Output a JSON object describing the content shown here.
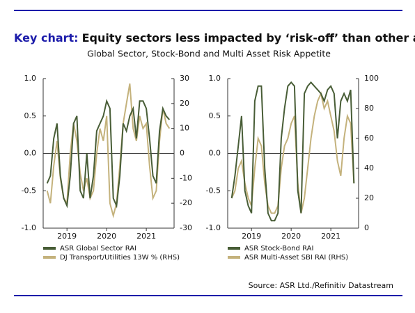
{
  "title_prefix": "Key chart:",
  "title": "Equity sectors less impacted by ‘risk-off’ than other assets",
  "subtitle": "Global Sector, Stock-Bond and Multi Asset Risk Appetite",
  "source": "Source: ASR Ltd./Refinitiv Datastream",
  "chart_data": [
    {
      "type": "line",
      "x": [
        2018.5,
        2018.583,
        2018.667,
        2018.75,
        2018.833,
        2018.917,
        2019,
        2019.083,
        2019.167,
        2019.25,
        2019.333,
        2019.417,
        2019.5,
        2019.583,
        2019.667,
        2019.75,
        2019.833,
        2019.917,
        2020,
        2020.083,
        2020.167,
        2020.25,
        2020.333,
        2020.417,
        2020.5,
        2020.583,
        2020.667,
        2020.75,
        2020.833,
        2020.917,
        2021,
        2021.083,
        2021.167,
        2021.25,
        2021.333,
        2021.417,
        2021.5,
        2021.583
      ],
      "xlim": [
        2018.4,
        2021.7
      ],
      "xticks": [
        2019,
        2020,
        2021
      ],
      "ylim": [
        -1,
        1
      ],
      "yticks": [
        {
          "value": -1,
          "label": "-1.0"
        },
        -0.5,
        {
          "value": 0,
          "label": "0.0"
        },
        0.5,
        {
          "value": 1,
          "label": "1.0"
        }
      ],
      "y2lim": [
        -30,
        30
      ],
      "y2ticks": [
        -30,
        -20,
        -10,
        0,
        10,
        20,
        30
      ],
      "series": [
        {
          "name": "ASR Global Sector RAI",
          "color": "#485d36",
          "values": [
            -0.4,
            -0.3,
            0.2,
            0.4,
            -0.3,
            -0.6,
            -0.7,
            -0.3,
            0.4,
            0.5,
            -0.5,
            -0.6,
            0.0,
            -0.6,
            -0.3,
            0.3,
            0.4,
            0.5,
            0.7,
            0.6,
            -0.6,
            -0.7,
            -0.3,
            0.4,
            0.3,
            0.5,
            0.6,
            0.2,
            0.7,
            0.7,
            0.6,
            0.2,
            -0.3,
            -0.4,
            0.3,
            0.6,
            0.5,
            0.45
          ]
        },
        {
          "name": "DJ Transport/Utilities 13W % (RHS)",
          "color": "#c4b27c",
          "axis": "y2",
          "values": [
            -15,
            -20,
            -5,
            5,
            -10,
            -18,
            -20,
            0,
            12,
            5,
            -8,
            -15,
            -10,
            -18,
            -15,
            0,
            10,
            5,
            15,
            -20,
            -25,
            -20,
            -5,
            12,
            20,
            28,
            10,
            5,
            15,
            10,
            12,
            -5,
            -18,
            -15,
            5,
            18,
            12,
            10
          ]
        }
      ]
    },
    {
      "type": "line",
      "x": [
        2018.5,
        2018.583,
        2018.667,
        2018.75,
        2018.833,
        2018.917,
        2019,
        2019.083,
        2019.167,
        2019.25,
        2019.333,
        2019.417,
        2019.5,
        2019.583,
        2019.667,
        2019.75,
        2019.833,
        2019.917,
        2020,
        2020.083,
        2020.167,
        2020.25,
        2020.333,
        2020.417,
        2020.5,
        2020.583,
        2020.667,
        2020.75,
        2020.833,
        2020.917,
        2021,
        2021.083,
        2021.167,
        2021.25,
        2021.333,
        2021.417,
        2021.5,
        2021.583
      ],
      "xlim": [
        2018.4,
        2021.7
      ],
      "xticks": [
        2019,
        2020,
        2021
      ],
      "ylim": [
        -1,
        1
      ],
      "yticks": [
        {
          "value": -1,
          "label": "-1.0"
        },
        -0.5,
        {
          "value": 0,
          "label": "0.0"
        },
        0.5,
        {
          "value": 1,
          "label": "1.0"
        }
      ],
      "y2lim": [
        0,
        100
      ],
      "y2ticks": [
        0,
        20,
        40,
        60,
        80,
        100
      ],
      "series": [
        {
          "name": "ASR Stock-Bond RAI",
          "color": "#485d36",
          "values": [
            -0.6,
            -0.3,
            0.1,
            0.5,
            -0.5,
            -0.7,
            -0.8,
            0.7,
            0.9,
            0.9,
            -0.2,
            -0.8,
            -0.9,
            -0.9,
            -0.8,
            0.2,
            0.6,
            0.9,
            0.95,
            0.9,
            -0.5,
            -0.8,
            0.8,
            0.9,
            0.95,
            0.9,
            0.85,
            0.8,
            0.7,
            0.85,
            0.9,
            0.8,
            0.2,
            0.7,
            0.8,
            0.7,
            0.85,
            -0.4
          ]
        },
        {
          "name": "ASR Multi-Asset SBI RAI (RHS)",
          "color": "#c4b27c",
          "axis": "y2",
          "values": [
            20,
            25,
            40,
            45,
            30,
            20,
            15,
            40,
            60,
            55,
            30,
            15,
            10,
            10,
            15,
            40,
            55,
            60,
            70,
            75,
            30,
            10,
            20,
            40,
            60,
            75,
            85,
            90,
            80,
            85,
            75,
            65,
            45,
            35,
            60,
            75,
            70,
            30
          ]
        }
      ]
    }
  ]
}
